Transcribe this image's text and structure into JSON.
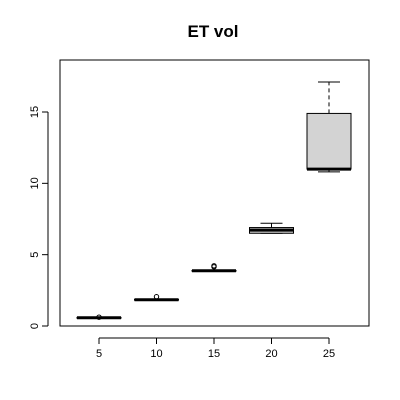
{
  "chart_data": {
    "type": "boxplot",
    "title": "ET vol",
    "xlabel": "",
    "ylabel": "",
    "categories": [
      "5",
      "10",
      "15",
      "20",
      "25"
    ],
    "yticks": [
      0,
      5,
      10,
      15
    ],
    "ylim": [
      0,
      18
    ],
    "grid": false,
    "boxes": [
      {
        "label": "5",
        "min": 0.55,
        "q1": 0.55,
        "median": 0.58,
        "q3": 0.6,
        "max": 0.62,
        "outliers": [
          0.62
        ],
        "fill": "#d3d3d3"
      },
      {
        "label": "10",
        "min": 1.82,
        "q1": 1.82,
        "median": 1.84,
        "q3": 1.86,
        "max": 1.88,
        "outliers": [
          2.05
        ],
        "fill": "#d3d3d3"
      },
      {
        "label": "15",
        "min": 3.85,
        "q1": 3.85,
        "median": 3.87,
        "q3": 3.89,
        "max": 3.92,
        "outliers": [
          4.15,
          4.22
        ],
        "fill": "#d3d3d3"
      },
      {
        "label": "20",
        "min": 6.5,
        "q1": 6.5,
        "median": 6.72,
        "q3": 6.9,
        "max": 7.2,
        "outliers": [],
        "fill": "#d3d3d3"
      },
      {
        "label": "25",
        "min": 10.8,
        "q1": 11.0,
        "median": 11.0,
        "q3": 14.9,
        "max": 17.1,
        "outliers": [],
        "fill": "#d3d3d3"
      }
    ]
  }
}
